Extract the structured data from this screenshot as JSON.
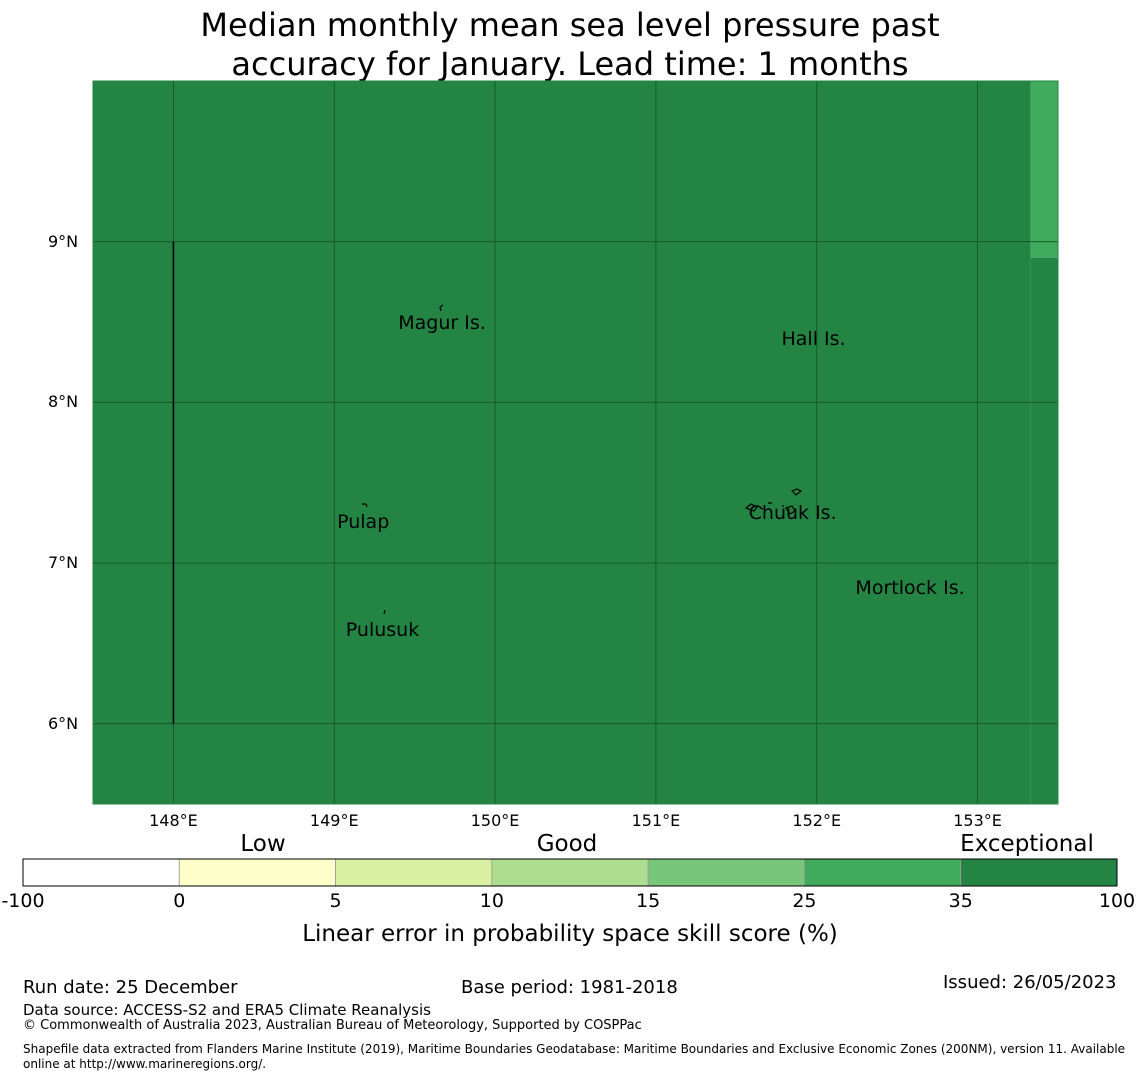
{
  "title": {
    "line1": "Median monthly mean sea level pressure past",
    "line2": "accuracy for January. Lead time: 1 months"
  },
  "map": {
    "lat_labels": [
      "9°N",
      "8°N",
      "7°N",
      "6°N"
    ],
    "lon_labels": [
      "148°E",
      "149°E",
      "150°E",
      "151°E",
      "152°E",
      "153°E"
    ],
    "extent": {
      "lon_min": 147.5,
      "lon_max": 153.5,
      "lat_min": 5.5,
      "lat_max": 10.0
    },
    "places": [
      {
        "name": "Magur Is.",
        "lon": 149.67,
        "lat": 8.6
      },
      {
        "name": "Hall Is.",
        "lon": 151.98,
        "lat": 8.5
      },
      {
        "name": "Pulap",
        "lon": 149.18,
        "lat": 7.36
      },
      {
        "name": "Chuuk Is.",
        "lon": 151.85,
        "lat": 7.42
      },
      {
        "name": "Mortlock Is.",
        "lon": 152.58,
        "lat": 6.95
      },
      {
        "name": "Pulusuk",
        "lon": 149.3,
        "lat": 6.69
      }
    ],
    "cells": [
      {
        "lon_min": 147.5,
        "lon_max": 153.33,
        "lat_min": 5.5,
        "lat_max": 10.0,
        "category": "35-100"
      },
      {
        "lon_min": 153.33,
        "lon_max": 153.5,
        "lat_min": 8.9,
        "lat_max": 10.0,
        "category": "25-35"
      },
      {
        "lon_min": 153.33,
        "lon_max": 153.5,
        "lat_min": 5.5,
        "lat_max": 8.9,
        "category": "35-100"
      }
    ],
    "boundary_line": {
      "lon": 148.0,
      "lat_min": 6.0,
      "lat_max": 9.0
    }
  },
  "colorbar": {
    "categories": [
      "Low",
      "Good",
      "Exceptional"
    ],
    "ticks": [
      "-100",
      "0",
      "5",
      "10",
      "15",
      "25",
      "35",
      "100"
    ],
    "colors": [
      "#ffffff",
      "#ffffcc",
      "#d9f0a3",
      "#addd8e",
      "#78c679",
      "#41ab5d",
      "#238443"
    ],
    "label": "Linear error in probability space skill score (%)"
  },
  "footer": {
    "run_date": "Run date: 25 December",
    "base_period": "Base period: 1981-2018",
    "issued": "Issued: 26/05/2023",
    "data_source": "Data source: ACCESS-S2 and ERA5 Climate Reanalysis",
    "copyright": "© Commonwealth of Australia 2023, Australian Bureau of Meteorology, Supported by COSPPac",
    "shapefile_line1": "Shapefile data extracted from Flanders Marine Institute (2019), Maritime Boundaries Geodatabase: Maritime Boundaries and Exclusive Economic Zones (200NM), version 11. Available",
    "shapefile_line2": "online at http://www.marineregions.org/."
  }
}
